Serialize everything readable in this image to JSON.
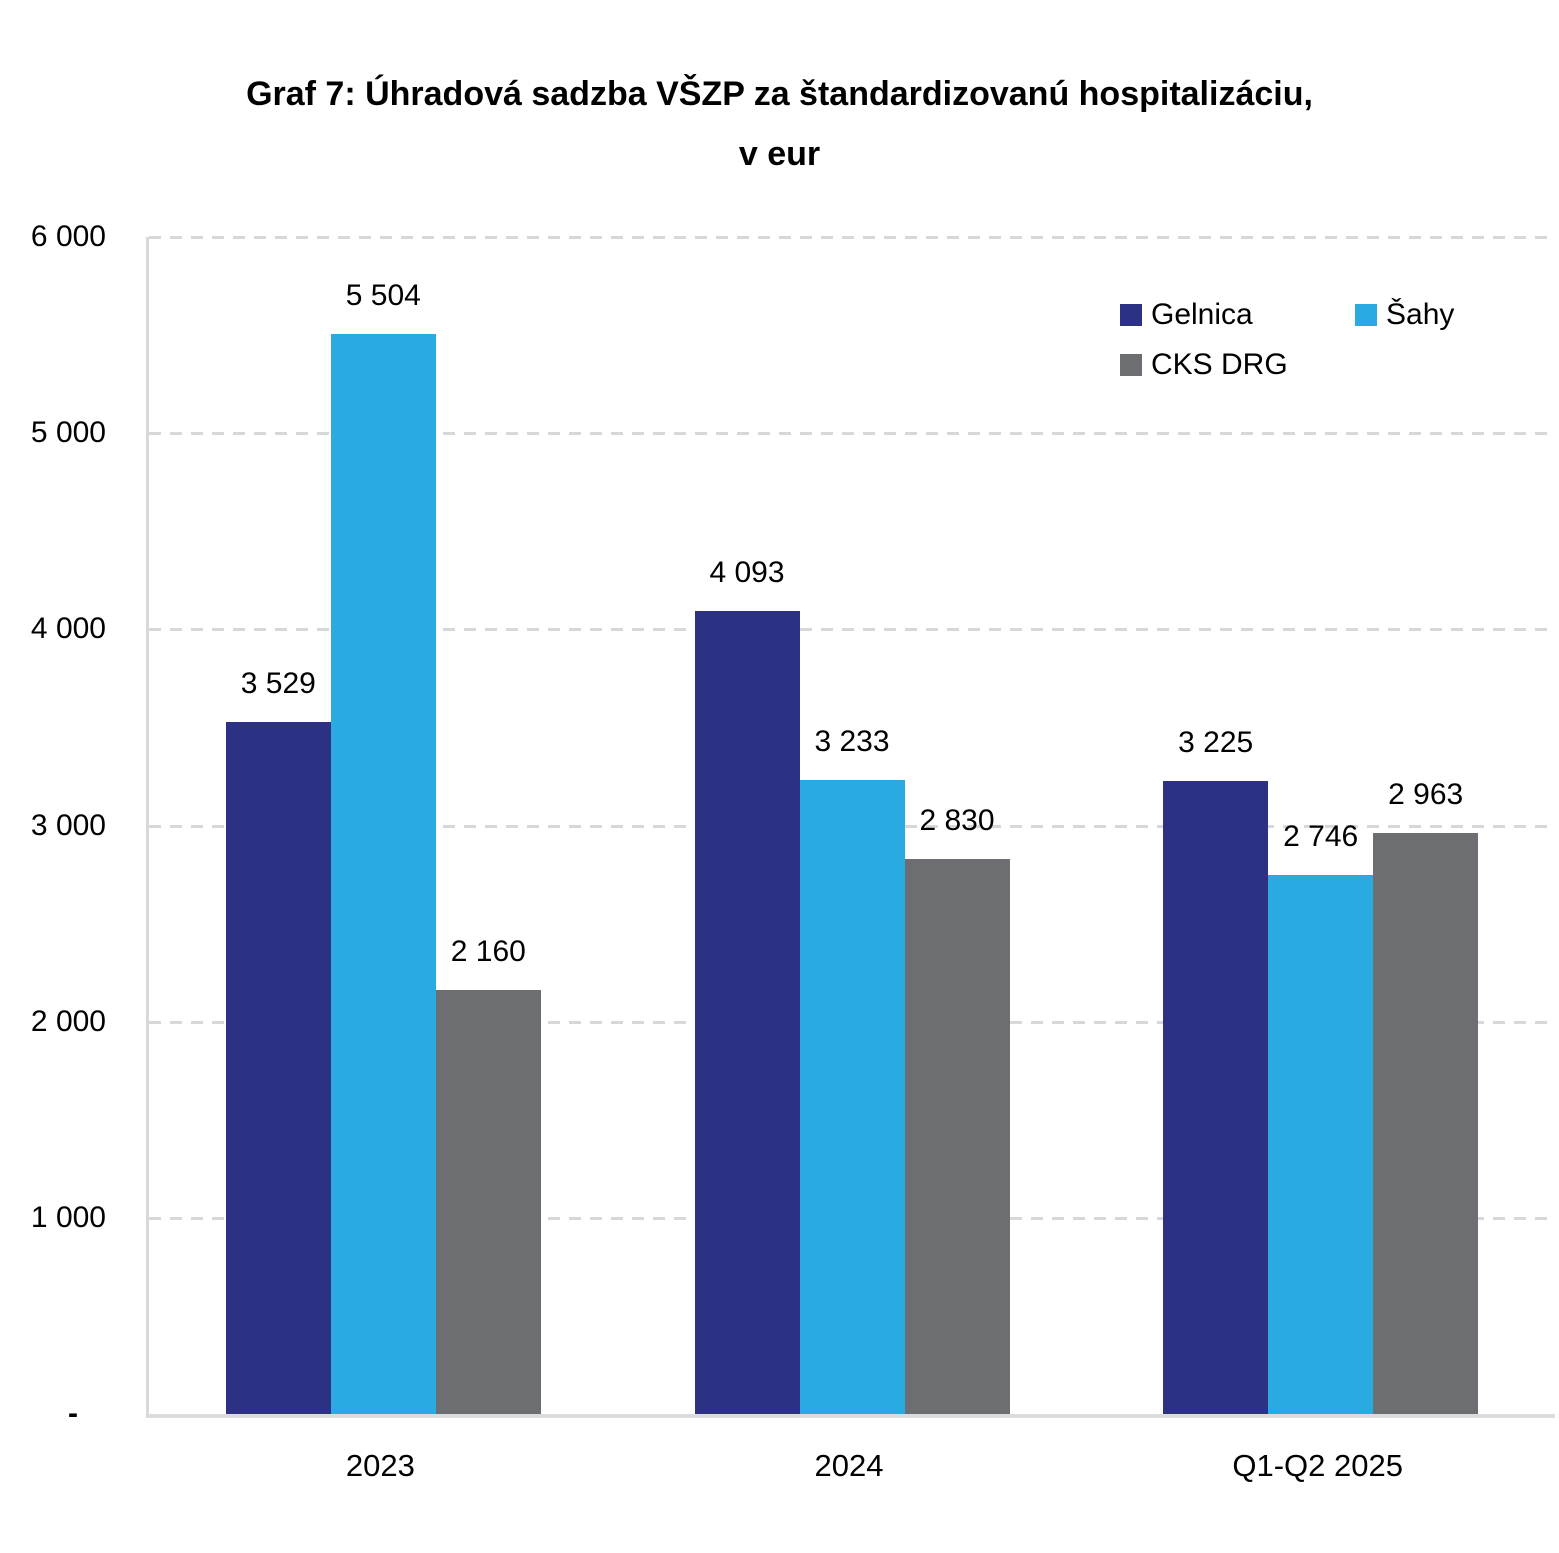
{
  "title": {
    "line1": "Graf 7: Úhradová sadzba VŠZP za štandardizovanú hospitalizáciu,",
    "line2": "v eur"
  },
  "chart_data": {
    "type": "bar",
    "title": "Graf 7: Úhradová sadzba VŠZP za štandardizovanú hospitalizáciu, v eur",
    "categories": [
      "2023",
      "2024",
      "Q1-Q2 2025"
    ],
    "series": [
      {
        "name": "Gelnica",
        "color": "#2D3184",
        "values": [
          3529,
          4093,
          3225
        ],
        "labels": [
          "3 529",
          "4 093",
          "3 225"
        ]
      },
      {
        "name": "Šahy",
        "color": "#29ABE2",
        "values": [
          5504,
          3233,
          2746
        ],
        "labels": [
          "5 504",
          "3 233",
          "2 746"
        ]
      },
      {
        "name": "CKS DRG",
        "color": "#6D6E71",
        "values": [
          2160,
          2830,
          2963
        ],
        "labels": [
          "2 160",
          "2 830",
          "2 963"
        ]
      }
    ],
    "ylim": [
      0,
      6000
    ],
    "ytick_step": 1000,
    "ytick_labels": [
      "-",
      "1 000",
      "2 000",
      "3 000",
      "4 000",
      "5 000",
      "6 000"
    ],
    "grid": "horizontal-dashed",
    "gridline_color": "#D8D8D8",
    "axis_line_color": "#D9D9D9",
    "legend_position": "top-right-inside",
    "value_labels_shown": true
  }
}
